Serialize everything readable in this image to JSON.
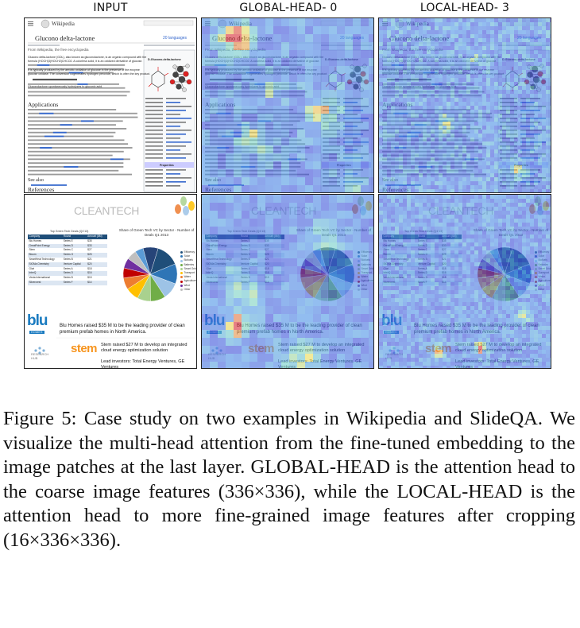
{
  "columns": [
    "INPUT",
    "GLOBAL-HEAD- 0",
    "LOCAL-HEAD- 3"
  ],
  "wikipedia": {
    "logo": "Wikipedia",
    "title": "Glucono delta-lactone",
    "languages": "20 languages",
    "section": "Applications",
    "see_also": "See also",
    "references": "References",
    "infobox_title": "D-Glucono-delta-lactone",
    "infobox_section": "Properties",
    "lines": [
      "From Wikipedia, the free encyclopedia",
      "Glucono delta-lactone (GDL), also known as gluconolactone, is an organic compound with the",
      "formula (HOCH)3(HOCH2)CHCO2. A colorless solid, it is an oxidized derivative of glucose.",
      "It is typically produced by the aerobic oxidation of glucose in the presence of the enzyme",
      "glucose oxidase. The conversion cogenerates hydrogen peroxide, which is often the key product.",
      "Gluconolactone spontaneously hydrolyzes to gluconic acid."
    ]
  },
  "slide": {
    "brand": "CLEANTECH",
    "table_title": "Top Green Tech Deals (Q1'13)",
    "table_headers": [
      "Company",
      "Round",
      "Amount ($M)"
    ],
    "table_rows": [
      [
        "Blu Homes",
        "Series E",
        "$35"
      ],
      [
        "GreatPoint Energy",
        "Series D",
        "$33"
      ],
      [
        "Stem",
        "Series C",
        "$27"
      ],
      [
        "Bloom",
        "Series G",
        "$25"
      ],
      [
        "SmartHeat Technology",
        "Series B",
        "$21"
      ],
      [
        "SIGMa Chemistry",
        "Venture Capital",
        "$20"
      ],
      [
        "Glori",
        "Series A",
        "$18"
      ],
      [
        "InterQ",
        "Series D",
        "$16"
      ],
      [
        "Vesta International",
        "Series B",
        "$15"
      ],
      [
        "Silvercrest",
        "Series F",
        "$14"
      ]
    ],
    "pie_title": "Share of Green Tech VC by Sector - Number of Deals Q1 2013",
    "legend": [
      "Efficiency",
      "Solar",
      "Biofuels",
      "Batteries",
      "Smart Grid",
      "Transport",
      "Water",
      "Agriculture",
      "Wind",
      "Other"
    ],
    "blu_logo": "blu",
    "homes_tag": "HOMES",
    "blu_news": "Blu Homes raised $35 M to be the leading provider of clean premium prefab homes in North America.",
    "stem_logo": "stem",
    "stem_news_1": "Stem raised $27 M to develop an integrated cloud energy optimization solution",
    "stem_news_2": "Lead investors: Total Energy Ventures, GE Ventures",
    "bottom_logo_1": "RESEARCH",
    "bottom_logo_2": "HUB"
  },
  "colors": {
    "attention_low": "#3f4fd9",
    "attention_high": "#d9323c",
    "pie": [
      "#1f4e79",
      "#2e75b6",
      "#9dc3e6",
      "#70ad47",
      "#a9d18e",
      "#ffc000",
      "#ed7d31",
      "#c00000",
      "#7030a0",
      "#bfbfbf",
      "#5b9bd5",
      "#264478"
    ]
  },
  "caption": "Figure 5: Case study on two examples in Wikipedia and SlideQA. We visualize the multi-head attention from the fine-tuned embedding to the image patches at the last layer. GLOBAL-HEAD is the attention head to the coarse image features (336×336), while the LOCAL-HEAD is the attention head to more fine-grained image features after cropping (16×336×336)."
}
